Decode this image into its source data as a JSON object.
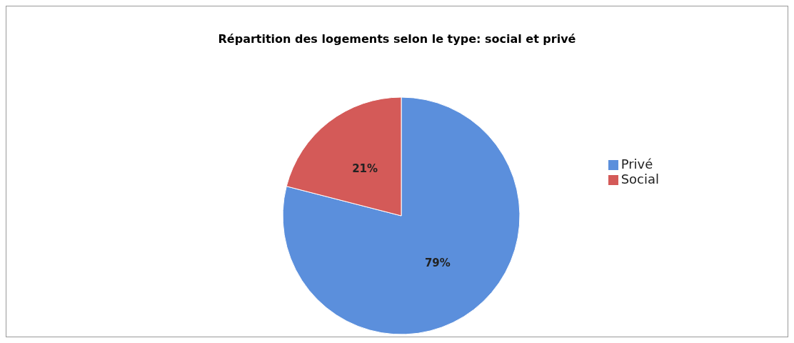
{
  "chart_data": {
    "type": "pie",
    "title": "Répartition des logements selon le type: social et privé",
    "categories": [
      "Privé",
      "Social"
    ],
    "values": [
      79,
      21
    ],
    "colors": [
      "#5b8fdc",
      "#d45a58"
    ],
    "value_labels": [
      "79%",
      "21%"
    ],
    "legend": "right"
  }
}
